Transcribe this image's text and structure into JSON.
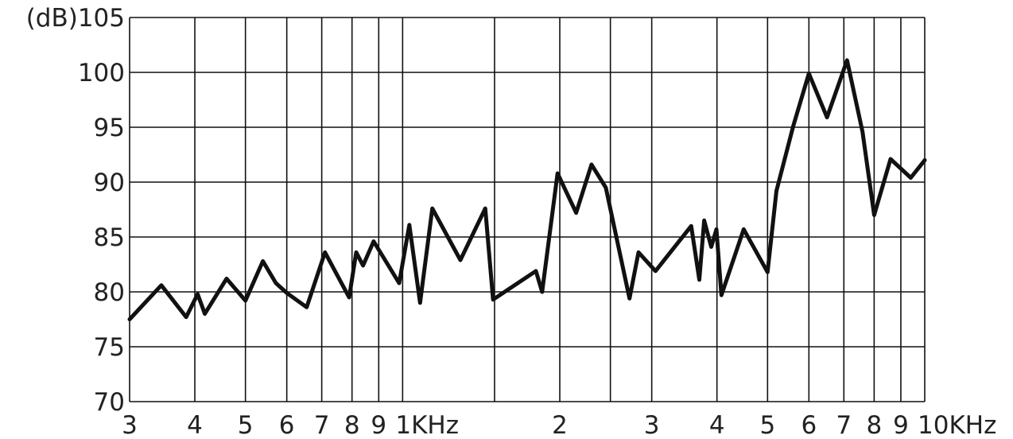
{
  "chart_data": {
    "type": "line",
    "x_scale": "log",
    "xlim": [
      300,
      10000
    ],
    "ylim": [
      70,
      105
    ],
    "grid": true,
    "y_ticks": [
      {
        "value": 105,
        "label": "(dB)105"
      },
      {
        "value": 100,
        "label": "100"
      },
      {
        "value": 95,
        "label": "95"
      },
      {
        "value": 90,
        "label": "90"
      },
      {
        "value": 85,
        "label": "85"
      },
      {
        "value": 80,
        "label": "80"
      },
      {
        "value": 75,
        "label": "75"
      },
      {
        "value": 70,
        "label": "70"
      }
    ],
    "x_ticks": [
      {
        "value": 300,
        "label": "3"
      },
      {
        "value": 400,
        "label": "4"
      },
      {
        "value": 500,
        "label": "5"
      },
      {
        "value": 600,
        "label": "6"
      },
      {
        "value": 700,
        "label": "7"
      },
      {
        "value": 800,
        "label": "8"
      },
      {
        "value": 900,
        "label": "9"
      },
      {
        "value": 1000,
        "label": "1KHz"
      },
      {
        "value": 2000,
        "label": "2"
      },
      {
        "value": 3000,
        "label": "3"
      },
      {
        "value": 4000,
        "label": "4"
      },
      {
        "value": 5000,
        "label": "5"
      },
      {
        "value": 6000,
        "label": "6"
      },
      {
        "value": 7000,
        "label": "7"
      },
      {
        "value": 8000,
        "label": "8"
      },
      {
        "value": 9000,
        "label": "9"
      },
      {
        "value": 10000,
        "label": "10KHz"
      }
    ],
    "extra_vertical_gridlines": [
      1500,
      2500
    ],
    "series": [
      {
        "x": [
          300,
          345,
          385,
          405,
          418,
          460,
          500,
          540,
          572,
          600,
          655,
          710,
          790,
          815,
          840,
          880,
          985,
          1030,
          1080,
          1140,
          1290,
          1440,
          1490,
          1800,
          1850,
          1980,
          2150,
          2300,
          2450,
          2720,
          2830,
          3050,
          3570,
          3700,
          3780,
          3900,
          3990,
          4080,
          4500,
          5000,
          5200,
          5600,
          6000,
          6500,
          7100,
          7600,
          8000,
          8600,
          9400,
          10000
        ],
        "y": [
          77.5,
          80.6,
          77.7,
          79.8,
          78.0,
          81.2,
          79.2,
          82.8,
          80.8,
          79.9,
          78.6,
          83.6,
          79.5,
          83.6,
          82.4,
          84.6,
          80.8,
          86.1,
          79.0,
          87.6,
          82.9,
          87.6,
          79.3,
          81.9,
          80.0,
          90.8,
          87.2,
          91.6,
          89.5,
          79.4,
          83.6,
          81.9,
          86.0,
          81.1,
          86.5,
          84.1,
          85.7,
          79.7,
          85.7,
          81.8,
          89.2,
          95.1,
          99.9,
          95.9,
          101.1,
          94.6,
          87.0,
          92.1,
          90.4,
          92.0
        ]
      }
    ]
  }
}
